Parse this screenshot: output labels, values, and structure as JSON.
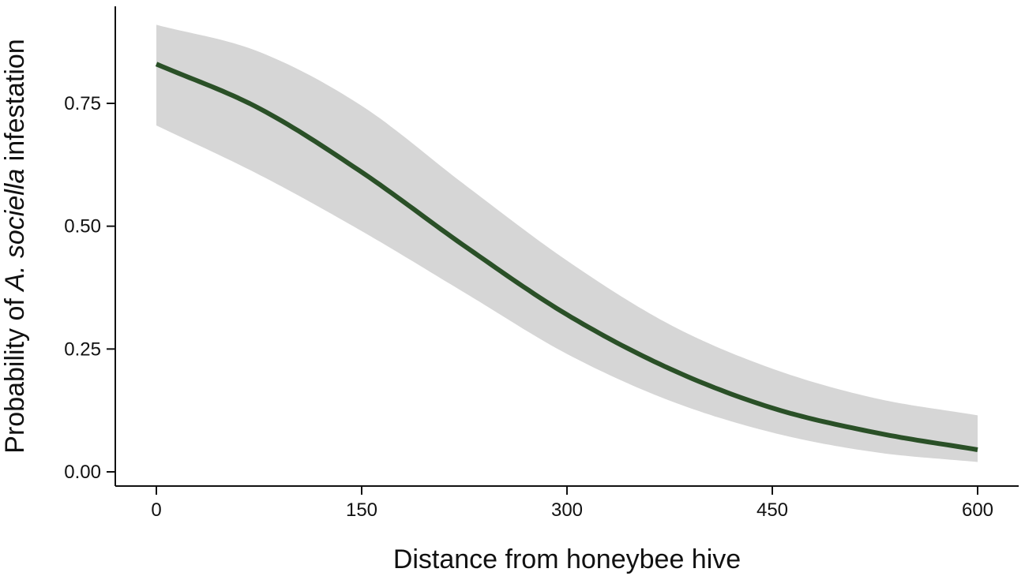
{
  "chart_data": {
    "type": "line",
    "xlabel": "Distance from honeybee hive",
    "ylabel_parts": [
      "Probability of ",
      "A. sociella",
      " infestation"
    ],
    "xlim": [
      0,
      600
    ],
    "ylim": [
      0,
      1
    ],
    "x_ticks": [
      0,
      150,
      300,
      450,
      600
    ],
    "y_ticks": [
      0,
      0.25,
      0.5,
      0.75
    ],
    "x_tick_labels": [
      "0",
      "150",
      "300",
      "450",
      "600"
    ],
    "y_tick_labels": [
      "0.00",
      "0.25",
      "0.50",
      "0.75"
    ],
    "grid": false,
    "legend": "none",
    "colors": {
      "line": "#2a5027",
      "band": "#d6d6d6",
      "axis": "#111111"
    },
    "series": [
      {
        "x": [
          0,
          75,
          150,
          225,
          300,
          375,
          450,
          525,
          600
        ],
        "y": [
          0.83,
          0.74,
          0.61,
          0.46,
          0.32,
          0.21,
          0.13,
          0.08,
          0.045
        ],
        "ci_lower": [
          0.705,
          0.605,
          0.49,
          0.365,
          0.24,
          0.145,
          0.08,
          0.04,
          0.02
        ],
        "ci_upper": [
          0.91,
          0.855,
          0.745,
          0.585,
          0.43,
          0.3,
          0.21,
          0.15,
          0.115
        ]
      }
    ]
  }
}
